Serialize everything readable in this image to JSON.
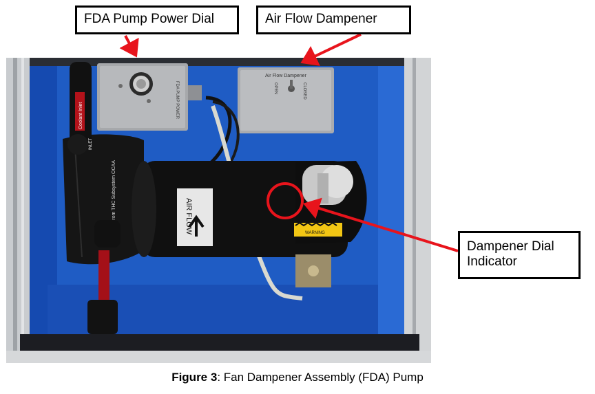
{
  "callouts": {
    "pump_power_dial": "FDA Pump Power Dial",
    "air_flow_dampener": "Air Flow Dampener",
    "dampener_dial_indicator": "Dampener Dial Indicator"
  },
  "photo_labels": {
    "pump_box": "FDA PUMP POWER",
    "dampener_box": "Air Flow Dampener",
    "open": "OPEN",
    "closed": "CLOSED",
    "coolant_inlet": "Coolant Inlet",
    "inlet": "INLET",
    "subsystem": "From THC Subsystem OCAA",
    "air_flow": "AIR FLOW",
    "warning": "WARNING"
  },
  "caption": {
    "label": "Figure 3",
    "text": ": Fan Dampener Assembly (FDA) Pump"
  },
  "colors": {
    "callout_arrow": "#e8141c",
    "blue_tray": "#1f5cc4",
    "dark_tray": "#0a2a7a"
  }
}
